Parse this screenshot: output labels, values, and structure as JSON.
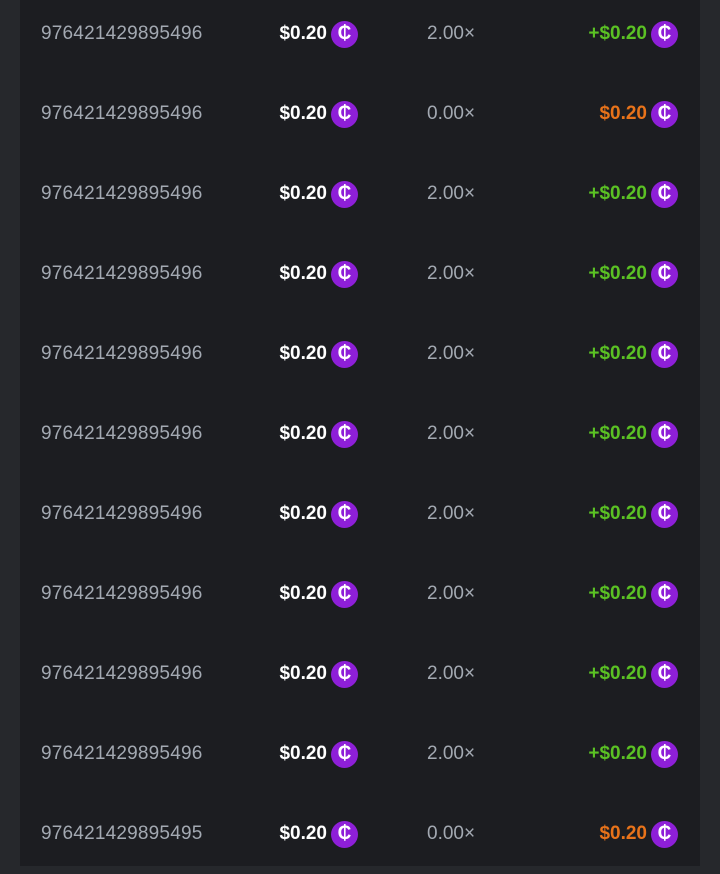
{
  "colors": {
    "win": "#5bc224",
    "loss": "#e8731a",
    "coin": "#8e1fd8"
  },
  "currency_icon": "cent-coin-icon",
  "bets": [
    {
      "id": "976421429895496",
      "amount": "$0.20",
      "multiplier": "2.00×",
      "payout": "+$0.20",
      "result": "win"
    },
    {
      "id": "976421429895496",
      "amount": "$0.20",
      "multiplier": "0.00×",
      "payout": "$0.20",
      "result": "loss"
    },
    {
      "id": "976421429895496",
      "amount": "$0.20",
      "multiplier": "2.00×",
      "payout": "+$0.20",
      "result": "win"
    },
    {
      "id": "976421429895496",
      "amount": "$0.20",
      "multiplier": "2.00×",
      "payout": "+$0.20",
      "result": "win"
    },
    {
      "id": "976421429895496",
      "amount": "$0.20",
      "multiplier": "2.00×",
      "payout": "+$0.20",
      "result": "win"
    },
    {
      "id": "976421429895496",
      "amount": "$0.20",
      "multiplier": "2.00×",
      "payout": "+$0.20",
      "result": "win"
    },
    {
      "id": "976421429895496",
      "amount": "$0.20",
      "multiplier": "2.00×",
      "payout": "+$0.20",
      "result": "win"
    },
    {
      "id": "976421429895496",
      "amount": "$0.20",
      "multiplier": "2.00×",
      "payout": "+$0.20",
      "result": "win"
    },
    {
      "id": "976421429895496",
      "amount": "$0.20",
      "multiplier": "2.00×",
      "payout": "+$0.20",
      "result": "win"
    },
    {
      "id": "976421429895496",
      "amount": "$0.20",
      "multiplier": "2.00×",
      "payout": "+$0.20",
      "result": "win"
    },
    {
      "id": "976421429895495",
      "amount": "$0.20",
      "multiplier": "0.00×",
      "payout": "$0.20",
      "result": "loss"
    }
  ]
}
